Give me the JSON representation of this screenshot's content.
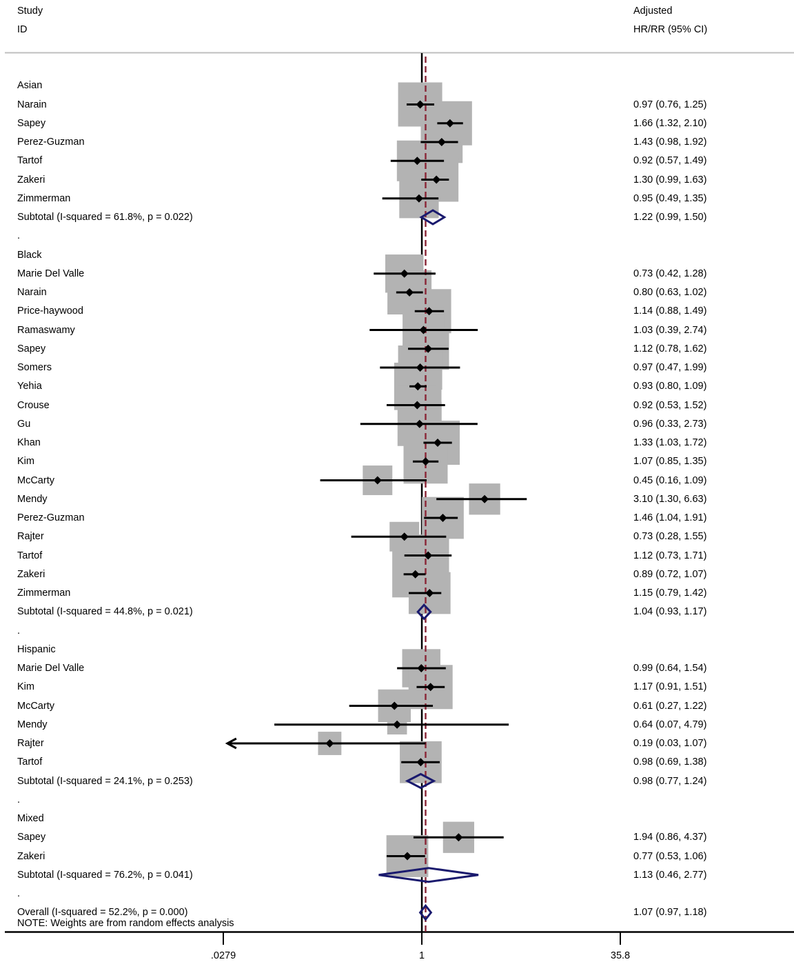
{
  "chart_data": {
    "type": "forest",
    "header": {
      "left_top": "Study",
      "left_bottom": "ID",
      "right_top": "Adjusted",
      "right_bottom": "HR/RR (95% CI)"
    },
    "x_scale": "log",
    "xlim": [
      0.0279,
      35.8
    ],
    "xticks": [
      ".0279",
      "1",
      "35.8"
    ],
    "overall_effect": 1.07,
    "note": "NOTE: Weights are from random effects analysis",
    "rows": [
      {
        "kind": "group",
        "label": "Asian"
      },
      {
        "kind": "study",
        "label": "Narain",
        "est": 0.97,
        "lo": 0.76,
        "hi": 1.25,
        "ci": "0.97 (0.76, 1.25)",
        "weight": 1.0
      },
      {
        "kind": "study",
        "label": "Sapey",
        "est": 1.66,
        "lo": 1.32,
        "hi": 2.1,
        "ci": "1.66 (1.32, 2.10)",
        "weight": 1.0
      },
      {
        "kind": "study",
        "label": "Perez-Guzman",
        "est": 1.43,
        "lo": 0.98,
        "hi": 1.92,
        "ci": "1.43 (0.98, 1.92)",
        "weight": 0.9
      },
      {
        "kind": "study",
        "label": "Tartof",
        "est": 0.92,
        "lo": 0.57,
        "hi": 1.49,
        "ci": "0.92 (0.57, 1.49)",
        "weight": 0.85
      },
      {
        "kind": "study",
        "label": "Zakeri",
        "est": 1.3,
        "lo": 0.99,
        "hi": 1.63,
        "ci": "1.30 (0.99, 1.63)",
        "weight": 1.0
      },
      {
        "kind": "study",
        "label": "Zimmerman",
        "est": 0.95,
        "lo": 0.49,
        "hi": 1.35,
        "ci": "0.95 (0.49, 1.35)",
        "weight": 0.8
      },
      {
        "kind": "subtotal",
        "label": "Subtotal  (I-squared = 61.8%, p = 0.022)",
        "est": 1.22,
        "lo": 0.99,
        "hi": 1.5,
        "ci": "1.22 (0.99, 1.50)"
      },
      {
        "kind": "dot",
        "label": "."
      },
      {
        "kind": "group",
        "label": "Black"
      },
      {
        "kind": "study",
        "label": "Marie Del Valle",
        "est": 0.73,
        "lo": 0.42,
        "hi": 1.28,
        "ci": "0.73 (0.42, 1.28)",
        "weight": 0.75
      },
      {
        "kind": "study",
        "label": "Narain",
        "est": 0.8,
        "lo": 0.63,
        "hi": 1.02,
        "ci": "0.80 (0.63, 1.02)",
        "weight": 1.0
      },
      {
        "kind": "study",
        "label": "Price-haywood",
        "est": 1.14,
        "lo": 0.88,
        "hi": 1.49,
        "ci": "1.14 (0.88, 1.49)",
        "weight": 1.0
      },
      {
        "kind": "study",
        "label": "Ramaswamy",
        "est": 1.03,
        "lo": 0.39,
        "hi": 2.74,
        "ci": "1.03 (0.39, 2.74)",
        "weight": 0.9
      },
      {
        "kind": "study",
        "label": "Sapey",
        "est": 1.12,
        "lo": 0.78,
        "hi": 1.62,
        "ci": "1.12 (0.78, 1.62)",
        "weight": 0.9
      },
      {
        "kind": "study",
        "label": "Somers",
        "est": 0.97,
        "lo": 0.47,
        "hi": 1.99,
        "ci": "0.97 (0.47, 1.99)",
        "weight": 1.0
      },
      {
        "kind": "study",
        "label": "Yehia",
        "est": 0.93,
        "lo": 0.8,
        "hi": 1.09,
        "ci": "0.93 (0.80, 1.09)",
        "weight": 1.15
      },
      {
        "kind": "study",
        "label": "Crouse",
        "est": 0.92,
        "lo": 0.53,
        "hi": 1.52,
        "ci": "0.92 (0.53, 1.52)",
        "weight": 0.75
      },
      {
        "kind": "study",
        "label": "Gu",
        "est": 0.96,
        "lo": 0.33,
        "hi": 2.73,
        "ci": "0.96 (0.33, 2.73)",
        "weight": 1.0
      },
      {
        "kind": "study",
        "label": "Khan",
        "est": 1.33,
        "lo": 1.03,
        "hi": 1.72,
        "ci": "1.33 (1.03, 1.72)",
        "weight": 1.0
      },
      {
        "kind": "study",
        "label": "Kim",
        "est": 1.07,
        "lo": 0.85,
        "hi": 1.35,
        "ci": "1.07 (0.85, 1.35)",
        "weight": 1.0
      },
      {
        "kind": "study",
        "label": "McCarty",
        "est": 0.45,
        "lo": 0.16,
        "hi": 1.09,
        "ci": "0.45 (0.16, 1.09)",
        "weight": 0.45
      },
      {
        "kind": "study",
        "label": "Mendy",
        "est": 3.1,
        "lo": 1.3,
        "hi": 6.63,
        "ci": "3.10 (1.30, 6.63)",
        "weight": 0.5
      },
      {
        "kind": "study",
        "label": "Perez-Guzman",
        "est": 1.46,
        "lo": 1.04,
        "hi": 1.91,
        "ci": "1.46 (1.04, 1.91)",
        "weight": 0.9
      },
      {
        "kind": "study",
        "label": "Rajter",
        "est": 0.73,
        "lo": 0.28,
        "hi": 1.55,
        "ci": "0.73 (0.28, 1.55)",
        "weight": 0.45
      },
      {
        "kind": "study",
        "label": "Tartof",
        "est": 1.12,
        "lo": 0.73,
        "hi": 1.71,
        "ci": "1.12 (0.73, 1.71)",
        "weight": 0.9
      },
      {
        "kind": "study",
        "label": "Zakeri",
        "est": 0.89,
        "lo": 0.72,
        "hi": 1.07,
        "ci": "0.89 (0.72, 1.07)",
        "weight": 1.1
      },
      {
        "kind": "study",
        "label": "Zimmerman",
        "est": 1.15,
        "lo": 0.79,
        "hi": 1.42,
        "ci": "1.15 (0.79, 1.42)",
        "weight": 0.9
      },
      {
        "kind": "subtotal",
        "label": "Subtotal  (I-squared = 44.8%, p = 0.021)",
        "est": 1.04,
        "lo": 0.93,
        "hi": 1.17,
        "ci": "1.04 (0.93, 1.17)"
      },
      {
        "kind": "dot",
        "label": "."
      },
      {
        "kind": "group",
        "label": "Hispanic"
      },
      {
        "kind": "study",
        "label": "Marie Del Valle",
        "est": 0.99,
        "lo": 0.64,
        "hi": 1.54,
        "ci": "0.99 (0.64, 1.54)",
        "weight": 0.75
      },
      {
        "kind": "study",
        "label": "Kim",
        "est": 1.17,
        "lo": 0.91,
        "hi": 1.51,
        "ci": "1.17 (0.91, 1.51)",
        "weight": 1.0
      },
      {
        "kind": "study",
        "label": "McCarty",
        "est": 0.61,
        "lo": 0.27,
        "hi": 1.22,
        "ci": "0.61 (0.27, 1.22)",
        "weight": 0.55
      },
      {
        "kind": "study",
        "label": "Mendy",
        "est": 0.64,
        "lo": 0.07,
        "hi": 4.79,
        "ci": "0.64 (0.07, 4.79)",
        "weight": 0.2
      },
      {
        "kind": "study",
        "label": "Rajter",
        "est": 0.19,
        "lo": 0.03,
        "hi": 1.07,
        "ci": "0.19 (0.03, 1.07)",
        "weight": 0.28,
        "arrow_left": true
      },
      {
        "kind": "study",
        "label": "Tartof",
        "est": 0.98,
        "lo": 0.69,
        "hi": 1.38,
        "ci": "0.98 (0.69, 1.38)",
        "weight": 0.9
      },
      {
        "kind": "subtotal",
        "label": "Subtotal  (I-squared = 24.1%, p = 0.253)",
        "est": 0.98,
        "lo": 0.77,
        "hi": 1.24,
        "ci": "0.98 (0.77, 1.24)"
      },
      {
        "kind": "dot",
        "label": "."
      },
      {
        "kind": "group",
        "label": "Mixed"
      },
      {
        "kind": "study",
        "label": "Sapey",
        "est": 1.94,
        "lo": 0.86,
        "hi": 4.37,
        "ci": "1.94 (0.86, 4.37)",
        "weight": 0.5
      },
      {
        "kind": "study",
        "label": "Zakeri",
        "est": 0.77,
        "lo": 0.53,
        "hi": 1.06,
        "ci": "0.77 (0.53, 1.06)",
        "weight": 0.9
      },
      {
        "kind": "subtotal",
        "label": "Subtotal  (I-squared = 76.2%, p = 0.041)",
        "est": 1.13,
        "lo": 0.46,
        "hi": 2.77,
        "ci": "1.13 (0.46, 2.77)"
      },
      {
        "kind": "dot",
        "label": "."
      },
      {
        "kind": "overall",
        "label": "Overall  (I-squared = 52.2%, p = 0.000)",
        "est": 1.07,
        "lo": 0.97,
        "hi": 1.18,
        "ci": "1.07 (0.97, 1.18)"
      }
    ],
    "colors": {
      "box": "#b3b3b3",
      "diamond": "#1a1a6e",
      "null_line": "#000000",
      "overall_line": "#8b2a3a",
      "rule": "#bfbfbf"
    }
  }
}
